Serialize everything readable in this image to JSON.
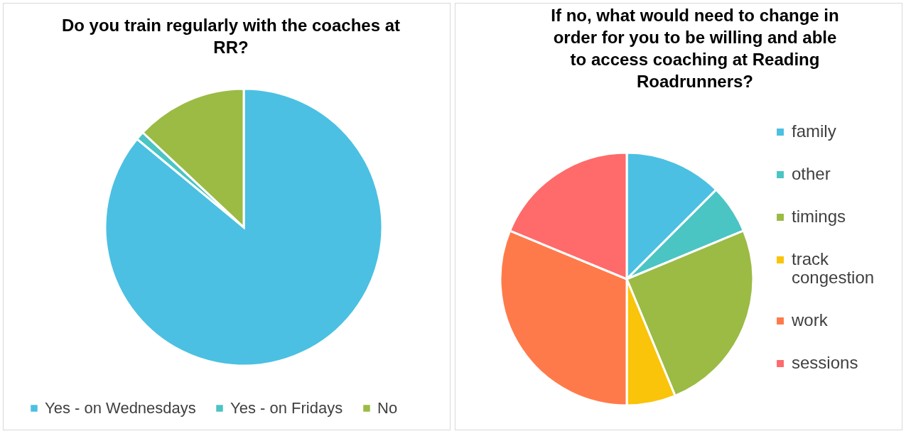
{
  "chart_data": [
    {
      "type": "pie",
      "title": "Do you train regularly with the coaches at RR?",
      "categories": [
        "Yes - on Wednesdays",
        "Yes - on Fridays",
        "No"
      ],
      "values": [
        86,
        1,
        13
      ],
      "colors": [
        "#4bc0e2",
        "#4bc4c4",
        "#9bbb44"
      ],
      "legend": "bottom"
    },
    {
      "type": "pie",
      "title": "If no, what would need to change in order for you to be willing and able to access coaching at Reading Roadrunners?",
      "categories": [
        "family",
        "other",
        "timings",
        "track congestion",
        "work",
        "sessions"
      ],
      "values": [
        12.5,
        6.25,
        25,
        6.25,
        31.25,
        18.75
      ],
      "colors": [
        "#4bc0e2",
        "#4bc4c4",
        "#9bbb44",
        "#f9c409",
        "#ff7a4a",
        "#ff6a6a"
      ],
      "legend": "right"
    }
  ]
}
